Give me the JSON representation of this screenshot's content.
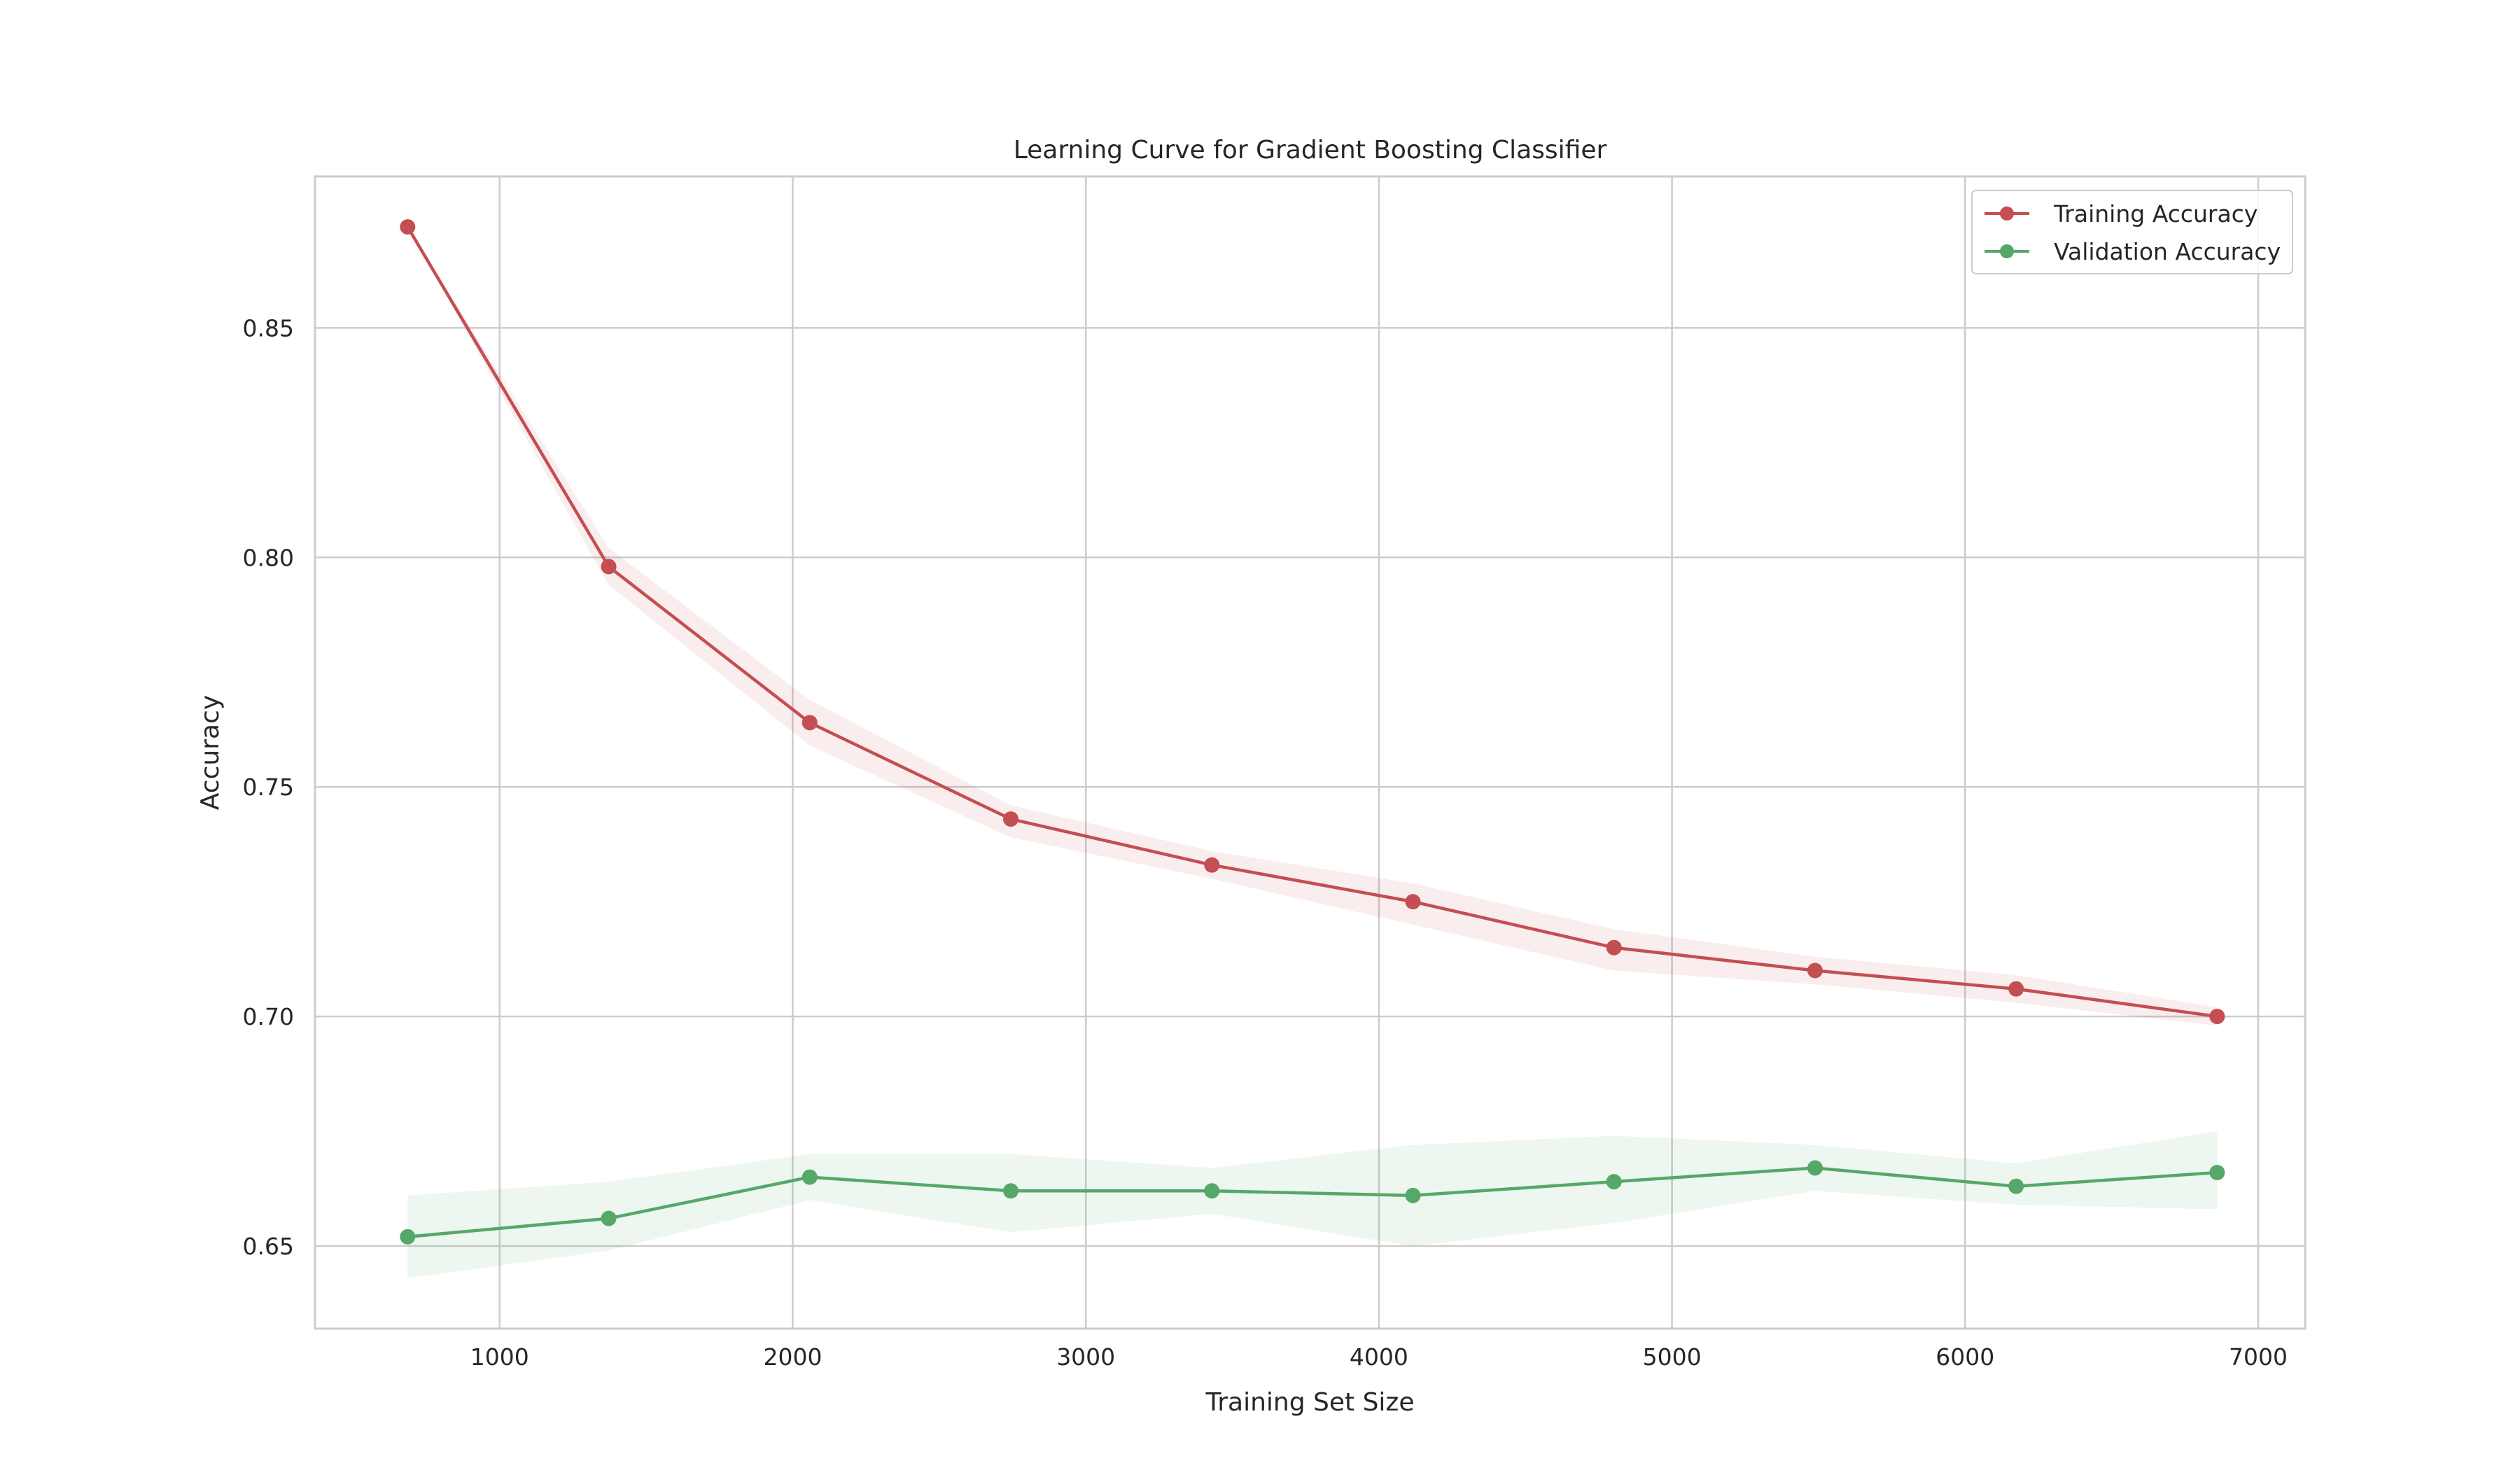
{
  "chart_data": {
    "type": "line",
    "title": "Learning Curve for Gradient Boosting Classifier",
    "xlabel": "Training Set Size",
    "ylabel": "Accuracy",
    "xlim": [
      370,
      7160
    ],
    "ylim": [
      0.632,
      0.883
    ],
    "x_ticks": [
      1000,
      2000,
      3000,
      4000,
      5000,
      6000,
      7000
    ],
    "y_ticks": [
      0.65,
      0.7,
      0.75,
      0.8,
      0.85
    ],
    "x_tick_labels": [
      "1000",
      "2000",
      "3000",
      "4000",
      "5000",
      "6000",
      "7000"
    ],
    "y_tick_labels": [
      "0.65",
      "0.70",
      "0.75",
      "0.80",
      "0.85"
    ],
    "grid": true,
    "legend_position": "top-right",
    "x": [
      686,
      1372,
      2058,
      2744,
      3430,
      4116,
      4802,
      5488,
      6174,
      6860
    ],
    "series": [
      {
        "name": "Training Accuracy",
        "color": "#c44e52",
        "values": [
          0.872,
          0.798,
          0.764,
          0.743,
          0.733,
          0.725,
          0.715,
          0.71,
          0.706,
          0.7
        ],
        "band_lower": [
          0.872,
          0.794,
          0.759,
          0.739,
          0.73,
          0.72,
          0.71,
          0.707,
          0.703,
          0.698
        ],
        "band_upper": [
          0.872,
          0.802,
          0.769,
          0.746,
          0.736,
          0.729,
          0.719,
          0.713,
          0.709,
          0.702
        ]
      },
      {
        "name": "Validation Accuracy",
        "color": "#55a868",
        "values": [
          0.652,
          0.656,
          0.665,
          0.662,
          0.662,
          0.661,
          0.664,
          0.667,
          0.663,
          0.666
        ],
        "band_lower": [
          0.643,
          0.649,
          0.66,
          0.653,
          0.657,
          0.65,
          0.655,
          0.662,
          0.659,
          0.658
        ],
        "band_upper": [
          0.661,
          0.664,
          0.67,
          0.67,
          0.667,
          0.672,
          0.674,
          0.672,
          0.668,
          0.675
        ]
      }
    ]
  }
}
